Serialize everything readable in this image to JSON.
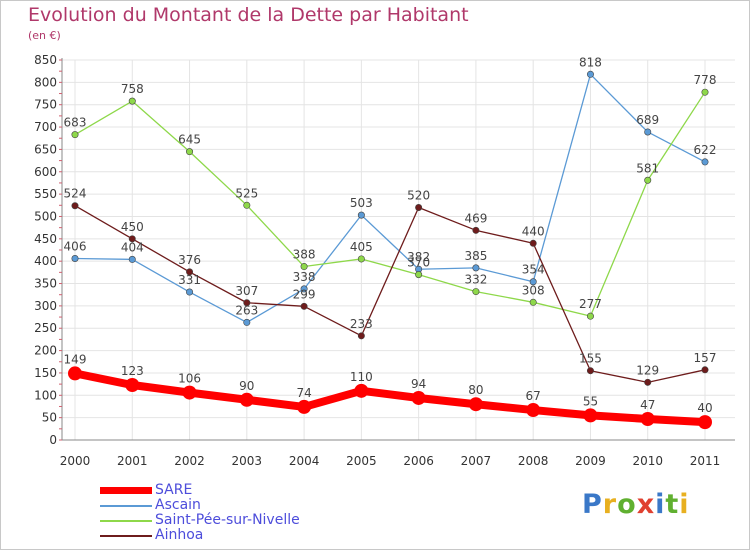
{
  "title": "Evolution du Montant de la Dette par Habitant",
  "unit": "(en €)",
  "logo": {
    "text": "Proxiti",
    "colors": [
      "#3a78c8",
      "#e8b020",
      "#60b030",
      "#e04030",
      "#3a78c8",
      "#60b030",
      "#e8b020"
    ]
  },
  "chart_data": {
    "type": "line",
    "categories": [
      "2000",
      "2001",
      "2002",
      "2003",
      "2004",
      "2005",
      "2006",
      "2007",
      "2008",
      "2009",
      "2010",
      "2011"
    ],
    "y_ticks": [
      0,
      50,
      100,
      150,
      200,
      250,
      300,
      350,
      400,
      450,
      500,
      550,
      600,
      650,
      700,
      750,
      800,
      850
    ],
    "ylim": [
      0,
      850
    ],
    "grid": true,
    "legend_position": "bottom-left",
    "series": [
      {
        "name": "SARE",
        "color": "#ff0000",
        "values": [
          149,
          123,
          106,
          90,
          74,
          110,
          94,
          80,
          67,
          55,
          47,
          40
        ]
      },
      {
        "name": "Ascain",
        "color": "#5b9ad5",
        "values": [
          406,
          404,
          331,
          263,
          338,
          503,
          382,
          385,
          354,
          818,
          689,
          622
        ]
      },
      {
        "name": "Saint-Pée-sur-Nivelle",
        "color": "#8ed84a",
        "values": [
          683,
          758,
          645,
          525,
          388,
          405,
          370,
          332,
          308,
          277,
          581,
          778
        ]
      },
      {
        "name": "Ainhoa",
        "color": "#6e1c1c",
        "values": [
          524,
          450,
          376,
          307,
          299,
          233,
          520,
          469,
          440,
          155,
          129,
          157
        ]
      }
    ]
  }
}
